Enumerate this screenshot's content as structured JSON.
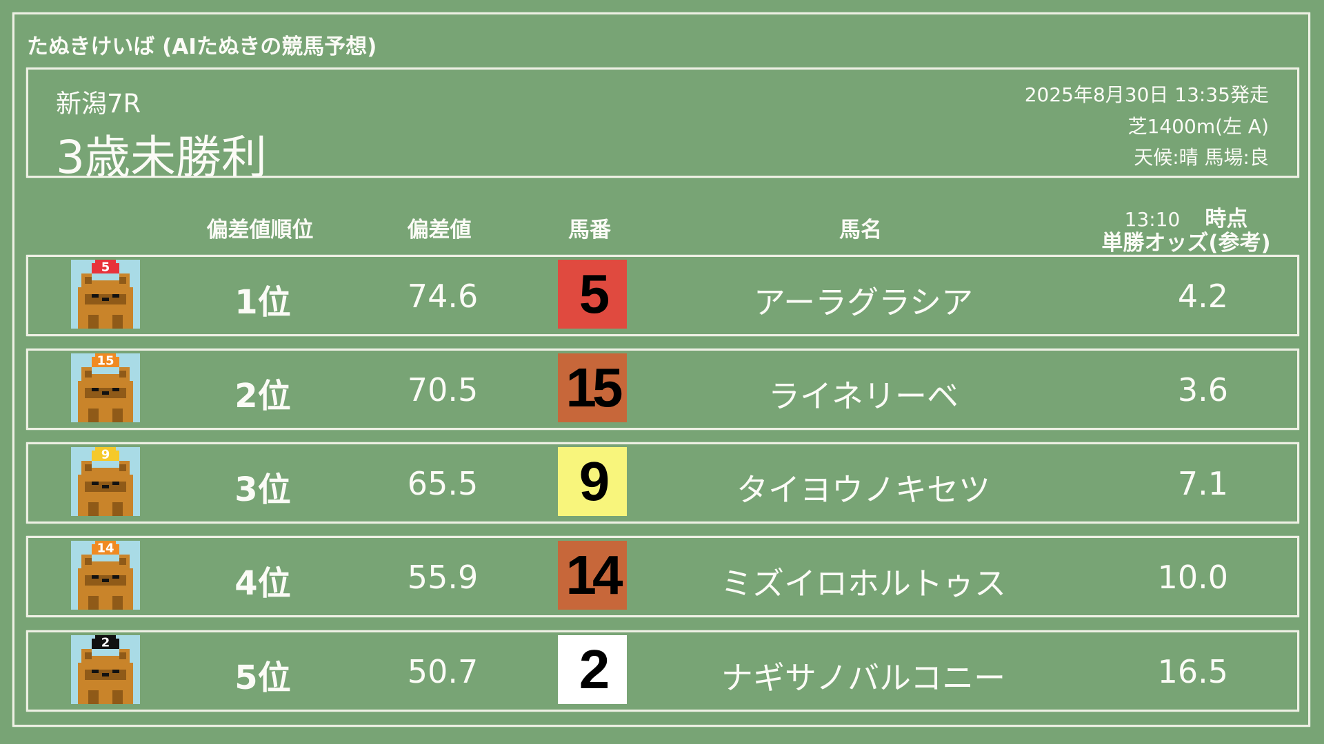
{
  "app_title": "たぬきけいば (AIたぬきの競馬予想)",
  "race": {
    "venue_round": "新潟7R",
    "name": "3歳未勝利",
    "datetime": "2025年8月30日 13:35発走",
    "course": "芝1400m(左 A)",
    "conditions": "天候:晴 馬場:良"
  },
  "columns": {
    "rank": "偏差値順位",
    "deviation": "偏差値",
    "number": "馬番",
    "horse_name": "馬名",
    "odds_time": "13:10",
    "odds_time_suffix": "時点",
    "odds": "単勝オッズ(参考)"
  },
  "rows": [
    {
      "rank": "1位",
      "deviation": "74.6",
      "number": "5",
      "horse_name": "アーラグラシア",
      "odds": "4.2",
      "box_color": "#e04a3f",
      "cap_color": "#e8323a",
      "cap_text_color": "#ffffff"
    },
    {
      "rank": "2位",
      "deviation": "70.5",
      "number": "15",
      "horse_name": "ライネリーベ",
      "odds": "3.6",
      "box_color": "#c7673a",
      "cap_color": "#f08a22",
      "cap_text_color": "#ffffff"
    },
    {
      "rank": "3位",
      "deviation": "65.5",
      "number": "9",
      "horse_name": "タイヨウノキセツ",
      "odds": "7.1",
      "box_color": "#f8f57c",
      "cap_color": "#f5c92a",
      "cap_text_color": "#ffffff"
    },
    {
      "rank": "4位",
      "deviation": "55.9",
      "number": "14",
      "horse_name": "ミズイロホルトゥス",
      "odds": "10.0",
      "box_color": "#c7673a",
      "cap_color": "#f08a22",
      "cap_text_color": "#ffffff"
    },
    {
      "rank": "5位",
      "deviation": "50.7",
      "number": "2",
      "horse_name": "ナギサノバルコニー",
      "odds": "16.5",
      "box_color": "#ffffff",
      "cap_color": "#111111",
      "cap_text_color": "#ffffff"
    }
  ],
  "colors": {
    "background": "#78a475",
    "chalk": "#eef0e4",
    "avatar_bg": "#a9dbe6",
    "tanuki": "#c9842a",
    "tanuki_dark": "#8f5a18"
  }
}
